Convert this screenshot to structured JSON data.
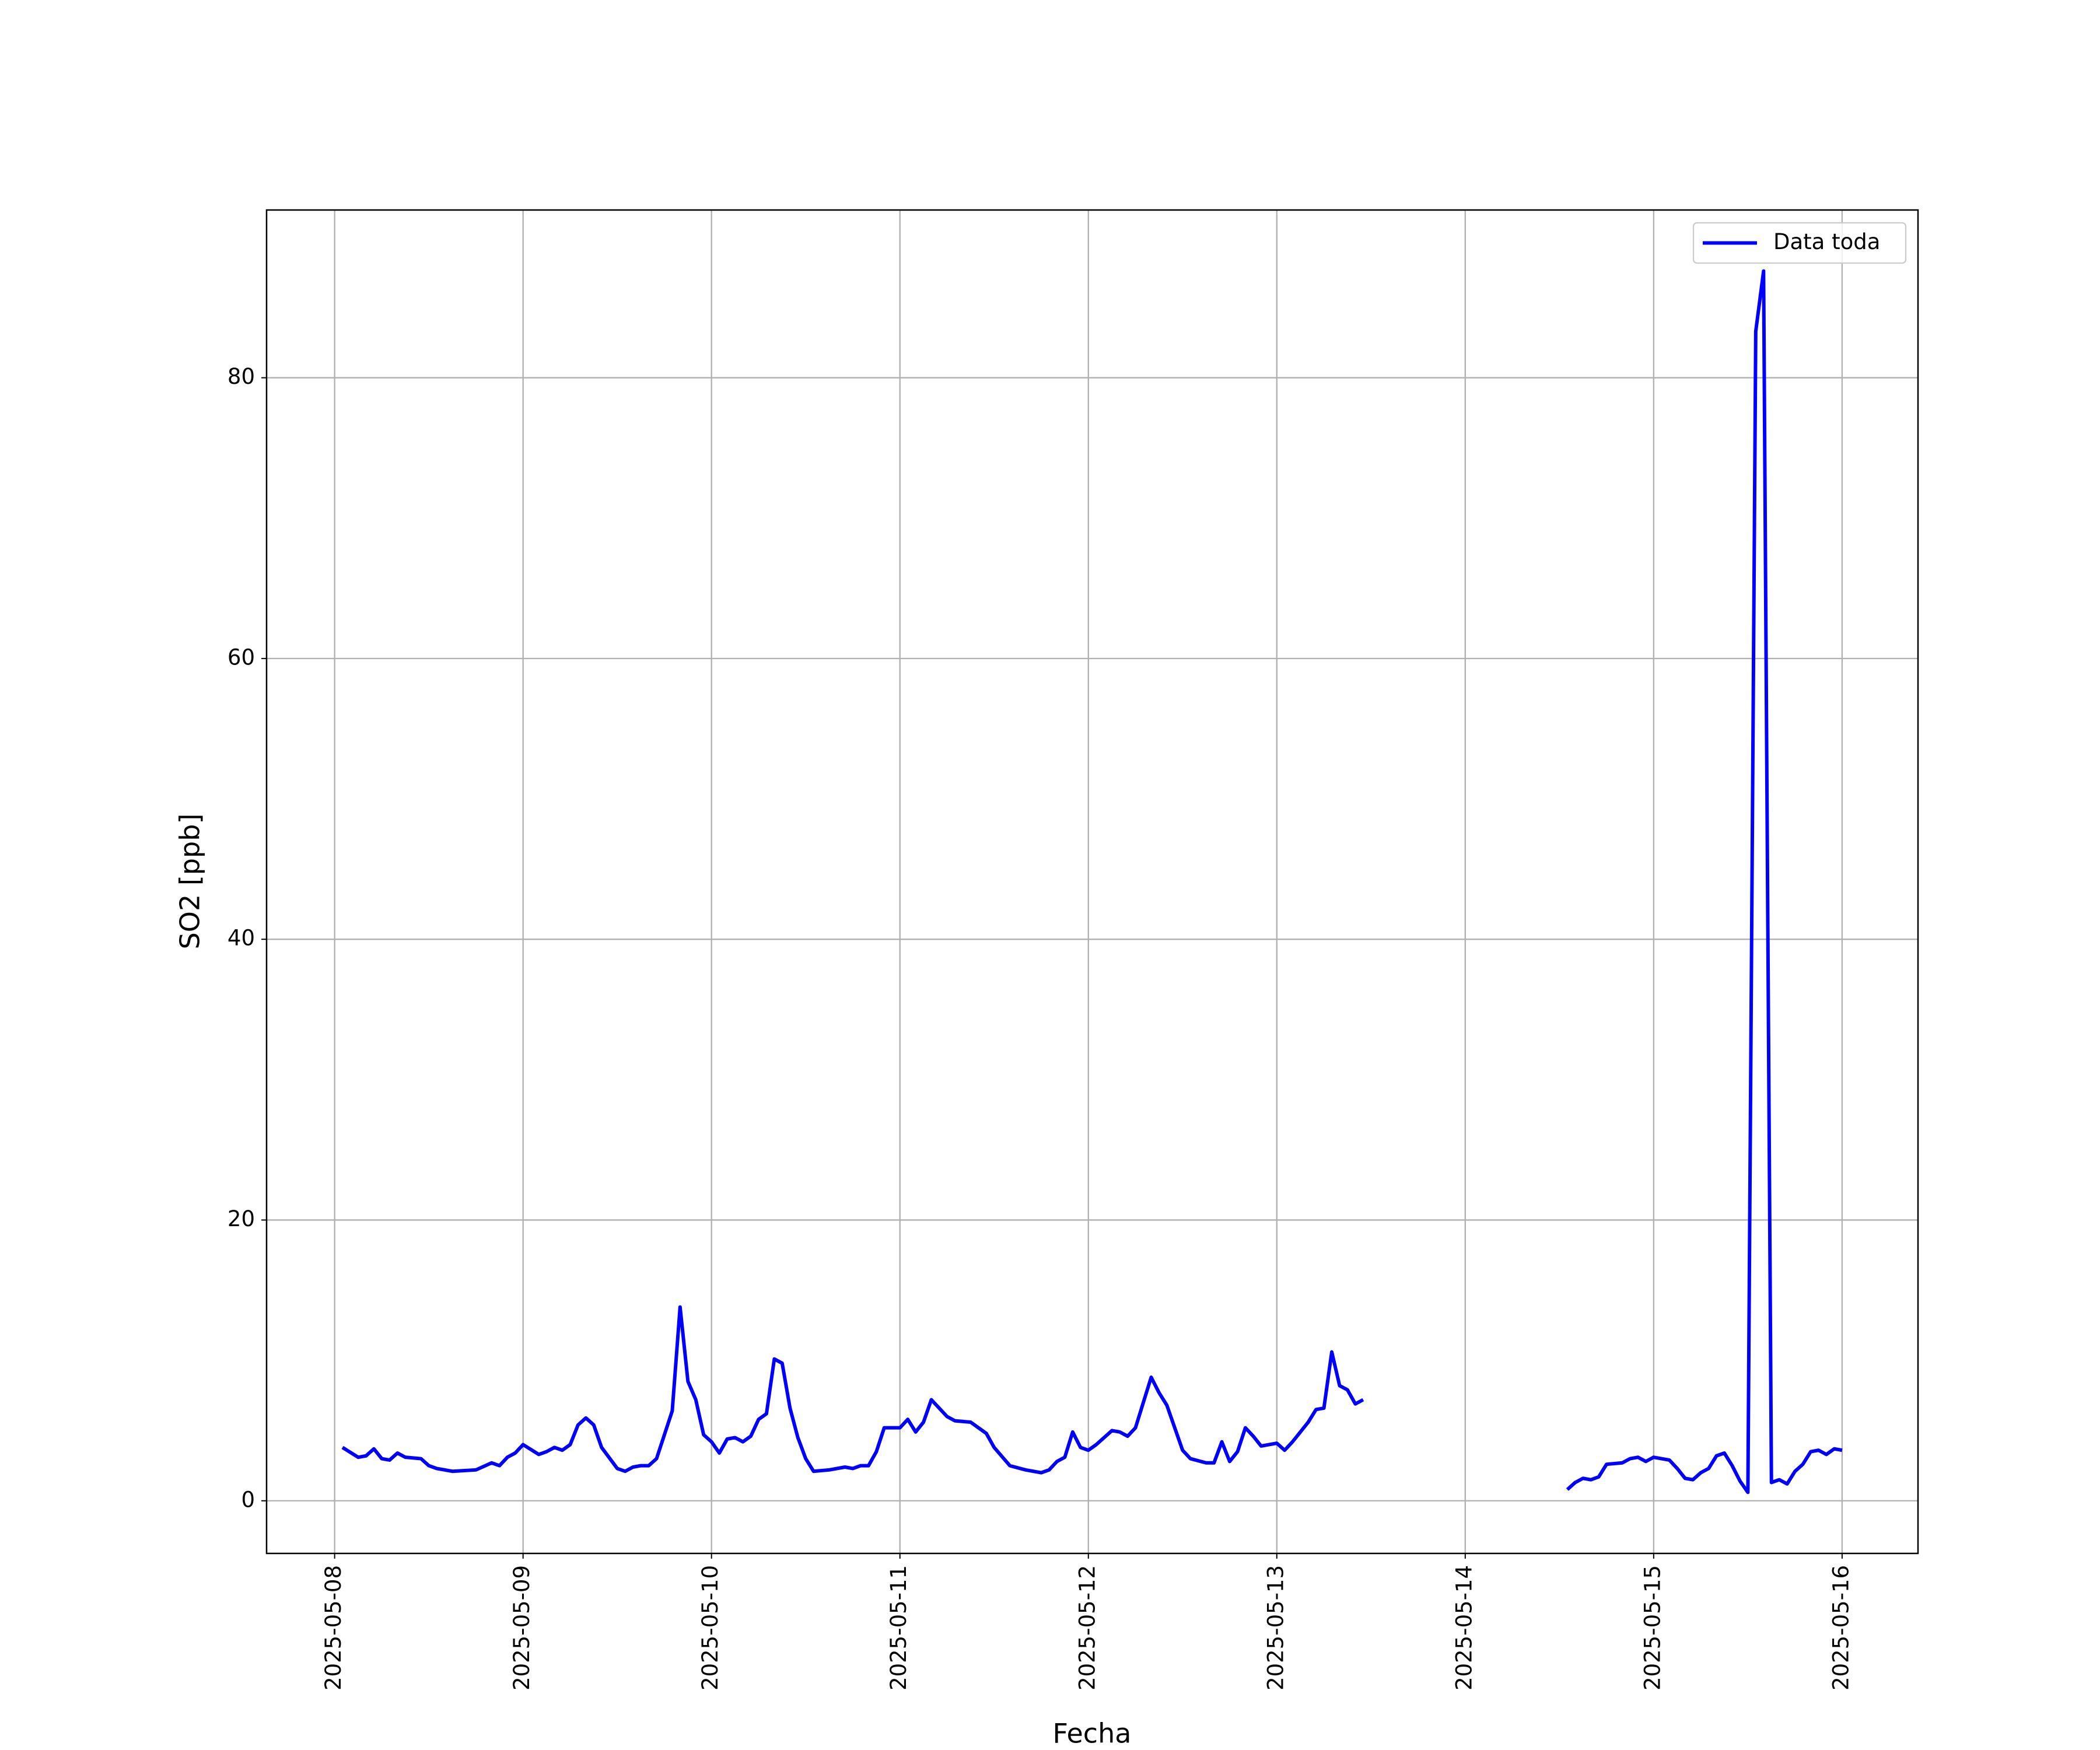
{
  "chart_data": {
    "type": "line",
    "x_label": "Fecha",
    "y_label": "SO2 [ppb]",
    "x": [
      "2025-05-08 01:00",
      "2025-05-08 03:00",
      "2025-05-08 04:00",
      "2025-05-08 05:00",
      "2025-05-08 06:00",
      "2025-05-08 07:00",
      "2025-05-08 08:00",
      "2025-05-08 09:00",
      "2025-05-08 11:00",
      "2025-05-08 12:00",
      "2025-05-08 13:00",
      "2025-05-08 15:00",
      "2025-05-08 18:00",
      "2025-05-08 20:00",
      "2025-05-08 21:00",
      "2025-05-08 22:00",
      "2025-05-08 23:00",
      "2025-05-09 00:00",
      "2025-05-09 02:00",
      "2025-05-09 03:00",
      "2025-05-09 04:00",
      "2025-05-09 05:00",
      "2025-05-09 06:00",
      "2025-05-09 07:00",
      "2025-05-09 08:00",
      "2025-05-09 09:00",
      "2025-05-09 10:00",
      "2025-05-09 12:00",
      "2025-05-09 13:00",
      "2025-05-09 14:00",
      "2025-05-09 15:00",
      "2025-05-09 16:00",
      "2025-05-09 17:00",
      "2025-05-09 18:00",
      "2025-05-09 19:00",
      "2025-05-09 20:00",
      "2025-05-09 21:00",
      "2025-05-09 22:00",
      "2025-05-09 23:00",
      "2025-05-10 00:00",
      "2025-05-10 01:00",
      "2025-05-10 02:00",
      "2025-05-10 03:00",
      "2025-05-10 04:00",
      "2025-05-10 05:00",
      "2025-05-10 06:00",
      "2025-05-10 07:00",
      "2025-05-10 08:00",
      "2025-05-10 09:00",
      "2025-05-10 10:00",
      "2025-05-10 11:00",
      "2025-05-10 12:00",
      "2025-05-10 13:00",
      "2025-05-10 15:00",
      "2025-05-10 17:00",
      "2025-05-10 18:00",
      "2025-05-10 19:00",
      "2025-05-10 20:00",
      "2025-05-10 21:00",
      "2025-05-10 22:00",
      "2025-05-11 00:00",
      "2025-05-11 01:00",
      "2025-05-11 02:00",
      "2025-05-11 03:00",
      "2025-05-11 04:00",
      "2025-05-11 06:00",
      "2025-05-11 07:00",
      "2025-05-11 09:00",
      "2025-05-11 11:00",
      "2025-05-11 12:00",
      "2025-05-11 14:00",
      "2025-05-11 16:00",
      "2025-05-11 18:00",
      "2025-05-11 19:00",
      "2025-05-11 20:00",
      "2025-05-11 21:00",
      "2025-05-11 22:00",
      "2025-05-11 23:00",
      "2025-05-12 00:00",
      "2025-05-12 01:00",
      "2025-05-12 02:00",
      "2025-05-12 03:00",
      "2025-05-12 04:00",
      "2025-05-12 05:00",
      "2025-05-12 06:00",
      "2025-05-12 08:00",
      "2025-05-12 09:00",
      "2025-05-12 10:00",
      "2025-05-12 11:00",
      "2025-05-12 12:00",
      "2025-05-12 13:00",
      "2025-05-12 15:00",
      "2025-05-12 16:00",
      "2025-05-12 17:00",
      "2025-05-12 18:00",
      "2025-05-12 19:00",
      "2025-05-12 20:00",
      "2025-05-12 21:00",
      "2025-05-12 22:00",
      "2025-05-13 00:00",
      "2025-05-13 01:00",
      "2025-05-13 02:00",
      "2025-05-13 03:00",
      "2025-05-13 04:00",
      "2025-05-13 05:00",
      "2025-05-13 06:00",
      "2025-05-13 07:00",
      "2025-05-13 08:00",
      "2025-05-13 09:00",
      "2025-05-13 10:00",
      "2025-05-13 11:00",
      "2025-05-13 12:00",
      "2025-05-14 13:00",
      "2025-05-14 14:00",
      "2025-05-14 15:00",
      "2025-05-14 16:00",
      "2025-05-14 17:00",
      "2025-05-14 18:00",
      "2025-05-14 20:00",
      "2025-05-14 21:00",
      "2025-05-14 22:00",
      "2025-05-14 23:00",
      "2025-05-15 00:00",
      "2025-05-15 02:00",
      "2025-05-15 03:00",
      "2025-05-15 04:00",
      "2025-05-15 05:00",
      "2025-05-15 06:00",
      "2025-05-15 07:00",
      "2025-05-15 08:00",
      "2025-05-15 09:00",
      "2025-05-15 10:00",
      "2025-05-15 11:00",
      "2025-05-15 12:00",
      "2025-05-15 13:00",
      "2025-05-15 14:00",
      "2025-05-15 15:00",
      "2025-05-15 16:00",
      "2025-05-15 17:00",
      "2025-05-15 18:00",
      "2025-05-15 19:00",
      "2025-05-15 20:00",
      "2025-05-15 21:00",
      "2025-05-15 22:00",
      "2025-05-15 23:00",
      "2025-05-16 00:00"
    ],
    "series": [
      {
        "name": "Data toda",
        "color": "#0000ff",
        "values": [
          3.8,
          3.1,
          3.2,
          3.7,
          3.0,
          2.9,
          3.4,
          3.1,
          3.0,
          2.5,
          2.3,
          2.1,
          2.2,
          2.7,
          2.5,
          3.1,
          3.4,
          4.0,
          3.3,
          3.5,
          3.8,
          3.6,
          4.0,
          5.4,
          5.9,
          5.4,
          3.8,
          2.3,
          2.1,
          2.4,
          2.5,
          2.5,
          3.0,
          4.7,
          6.4,
          13.8,
          8.5,
          7.2,
          4.7,
          4.2,
          3.4,
          4.4,
          4.5,
          4.2,
          4.6,
          5.8,
          6.2,
          10.1,
          9.8,
          6.6,
          4.5,
          3.0,
          2.1,
          2.2,
          2.4,
          2.3,
          2.5,
          2.5,
          3.5,
          5.2,
          5.2,
          5.8,
          4.9,
          5.6,
          7.2,
          6.0,
          5.7,
          5.6,
          4.8,
          3.8,
          2.5,
          2.2,
          2.0,
          2.2,
          2.8,
          3.1,
          4.9,
          3.8,
          3.6,
          4.0,
          4.5,
          5.0,
          4.9,
          4.6,
          5.2,
          8.8,
          7.7,
          6.8,
          5.2,
          3.6,
          3.0,
          2.7,
          2.7,
          4.2,
          2.8,
          3.5,
          5.2,
          4.6,
          3.9,
          4.1,
          3.6,
          4.2,
          4.9,
          5.6,
          6.5,
          6.6,
          10.6,
          8.2,
          7.9,
          6.9,
          7.2,
          null,
          0.8,
          1.3,
          1.6,
          1.5,
          1.7,
          2.6,
          2.7,
          3.0,
          3.1,
          2.8,
          3.1,
          2.9,
          2.3,
          1.6,
          1.5,
          2.0,
          2.3,
          3.2,
          3.4,
          2.5,
          1.4,
          0.6,
          83.3,
          87.6,
          1.3,
          1.5,
          1.2,
          2.1,
          2.6,
          3.5,
          3.6,
          3.3,
          3.7,
          3.6
        ]
      }
    ],
    "xlim": [
      "2025-05-07 15:20",
      "2025-05-16 09:40"
    ],
    "xticks": [
      "2025-05-08",
      "2025-05-09",
      "2025-05-10",
      "2025-05-11",
      "2025-05-12",
      "2025-05-13",
      "2025-05-14",
      "2025-05-15",
      "2025-05-16"
    ],
    "ylim": [
      -3.75,
      91.95
    ],
    "yticks": [
      0,
      20,
      40,
      60,
      80
    ],
    "grid": true,
    "legend": "upper right"
  }
}
